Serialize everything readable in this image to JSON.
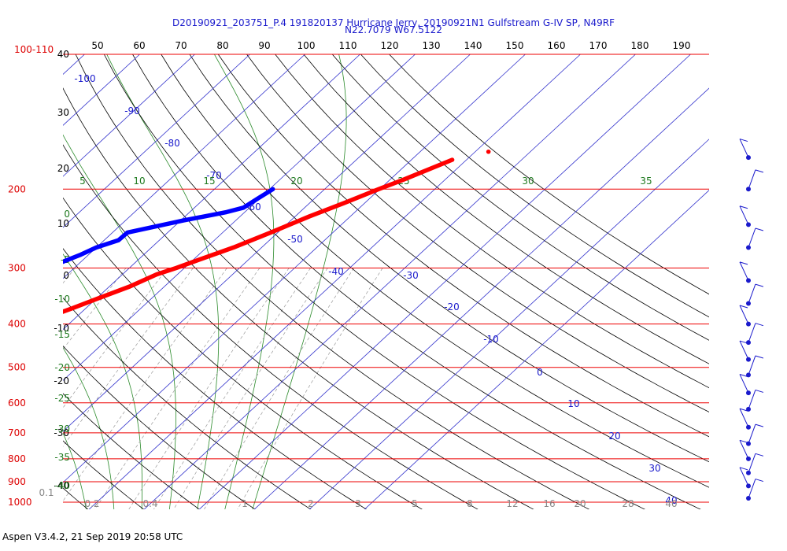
{
  "chart_data": {
    "type": "skew-t log-p diagram",
    "title_line1": "D20190921_203751_P.4 191820137 Hurricane Jerry, 20190921N1 Gulfstream G-IV SP, N49RF",
    "title_line2": "N22.7079 W67.5122",
    "footer": "Aspen V3.4.2, 21 Sep 2019  20:58 UTC",
    "pressure_labels": [
      "100-110",
      "200",
      "300",
      "400",
      "500",
      "600",
      "700",
      "800",
      "900",
      "1000"
    ],
    "pressure_levels": [
      100,
      200,
      300,
      400,
      500,
      600,
      700,
      800,
      900,
      1000
    ],
    "temperature_ticks_left": [
      "40",
      "30",
      "20",
      "10",
      "0",
      "-10",
      "-20",
      "-30",
      "-40"
    ],
    "theta_ticks_top": [
      "50",
      "60",
      "70",
      "80",
      "90",
      "100",
      "110",
      "120",
      "130",
      "140",
      "150",
      "160",
      "170",
      "180",
      "190"
    ],
    "isotherm_labels": [
      "-100",
      "-90",
      "-80",
      "-70",
      "-60",
      "-50",
      "-40",
      "-30",
      "-20",
      "-10",
      "0",
      "10",
      "20",
      "30",
      "40"
    ],
    "moist_adiabat_labels_top": [
      "5",
      "10",
      "15",
      "20",
      "25",
      "30",
      "35"
    ],
    "moist_adiabat_labels_left": [
      "0",
      "-5",
      "-10",
      "-15",
      "-20",
      "-25",
      "-30",
      "-35",
      "-40"
    ],
    "mixing_ratio_labels": [
      "0.1",
      "0.2",
      "0.4",
      "1",
      "2",
      "3",
      "5",
      "8",
      "12",
      "16",
      "20",
      "28",
      "40"
    ],
    "series": [
      {
        "kind": "temperature",
        "color": "#ff0000",
        "points": [
          [
            172,
            7.4
          ],
          [
            190,
            2.6
          ],
          [
            200,
            -0.2
          ],
          [
            215,
            -3.8
          ],
          [
            230,
            -7.4
          ],
          [
            250,
            -11.3
          ],
          [
            270,
            -15.1
          ],
          [
            290,
            -19.5
          ],
          [
            300,
            -21.5
          ],
          [
            310,
            -23.8
          ],
          [
            330,
            -26.3
          ],
          [
            350,
            -29.6
          ],
          [
            370,
            -32.6
          ],
          [
            390,
            -35.8
          ],
          [
            400,
            -37.3
          ],
          [
            420,
            -40.5
          ],
          [
            440,
            -43.6
          ],
          [
            460,
            -46.5
          ],
          [
            480,
            -49.3
          ],
          [
            500,
            -51.8
          ],
          [
            520,
            -54.1
          ],
          [
            540,
            -56.3
          ],
          [
            560,
            -58.7
          ],
          [
            580,
            -60.9
          ],
          [
            600,
            -62.6
          ],
          [
            620,
            -64.1
          ],
          [
            640,
            -66.4
          ],
          [
            660,
            -68.5
          ],
          [
            680,
            -70.3
          ],
          [
            700,
            -71.6
          ],
          [
            720,
            -73.5
          ],
          [
            740,
            -76.1
          ],
          [
            760,
            -79.3
          ],
          [
            780,
            -81.8
          ],
          [
            800,
            -83.9
          ],
          [
            820,
            -86.7
          ],
          [
            840,
            -89.6
          ],
          [
            860,
            -92.5
          ],
          [
            870,
            -94.7
          ],
          [
            880,
            -95.9
          ],
          [
            890,
            -97.2
          ],
          [
            900,
            -97.3
          ],
          [
            910,
            -98.6
          ],
          [
            920,
            -99.4
          ],
          [
            930,
            -100.0
          ],
          [
            940,
            -101.7
          ],
          [
            960,
            -103.8
          ],
          [
            980,
            -105.7
          ],
          [
            1000,
            -108.1
          ],
          [
            1010,
            -109.3
          ]
        ]
      },
      {
        "kind": "dewpoint",
        "color": "#0000ff",
        "points": [
          [
            200,
            -19.4
          ],
          [
            210,
            -20.3
          ],
          [
            220,
            -21.1
          ],
          [
            225,
            -23.3
          ],
          [
            235,
            -29.5
          ],
          [
            250,
            -37.3
          ],
          [
            260,
            -37.4
          ],
          [
            270,
            -40.0
          ],
          [
            280,
            -41.4
          ],
          [
            290,
            -43.2
          ],
          [
            300,
            -45.3
          ],
          [
            310,
            -47.9
          ],
          [
            315,
            -50.6
          ],
          [
            320,
            -53.7
          ],
          [
            325,
            -56.1
          ],
          [
            330,
            -60.5
          ],
          [
            340,
            -64.6
          ],
          [
            350,
            -69.0
          ],
          [
            360,
            -71.9
          ],
          [
            375,
            -74.8
          ],
          [
            390,
            -77.3
          ],
          [
            400,
            -80.2
          ],
          [
            420,
            -83.9
          ],
          [
            440,
            -88.0
          ],
          [
            460,
            -90.5
          ],
          [
            480,
            -92.6
          ],
          [
            500,
            -95.9
          ],
          [
            520,
            -97.3
          ],
          [
            540,
            -99.1
          ],
          [
            560,
            -101.3
          ],
          [
            580,
            -101.8
          ],
          [
            600,
            -102.4
          ],
          [
            620,
            -104.6
          ],
          [
            640,
            -104.3
          ],
          [
            660,
            -104.5
          ],
          [
            680,
            -105.4
          ],
          [
            700,
            -106.2
          ],
          [
            720,
            -105.8
          ],
          [
            740,
            -106.1
          ],
          [
            760,
            -106.7
          ],
          [
            780,
            -106.5
          ],
          [
            800,
            -106.5
          ],
          [
            820,
            -107.2
          ],
          [
            840,
            -108.0
          ],
          [
            860,
            -109.0
          ],
          [
            880,
            -110.2
          ],
          [
            890,
            -111.1
          ],
          [
            900,
            -111.1
          ],
          [
            910,
            -112.0
          ],
          [
            920,
            -113.0
          ],
          [
            940,
            -113.8
          ],
          [
            960,
            -114.5
          ],
          [
            980,
            -114.7
          ],
          [
            1000,
            -114.5
          ],
          [
            1010,
            -115.2
          ]
        ]
      }
    ],
    "isolated_point": {
      "p": 165,
      "t": 12.4,
      "color": "#ff0000"
    },
    "wind_barbs_pressures": [
      170,
      200,
      240,
      270,
      320,
      360,
      400,
      440,
      480,
      520,
      570,
      620,
      680,
      740,
      800,
      860,
      920,
      980
    ]
  }
}
